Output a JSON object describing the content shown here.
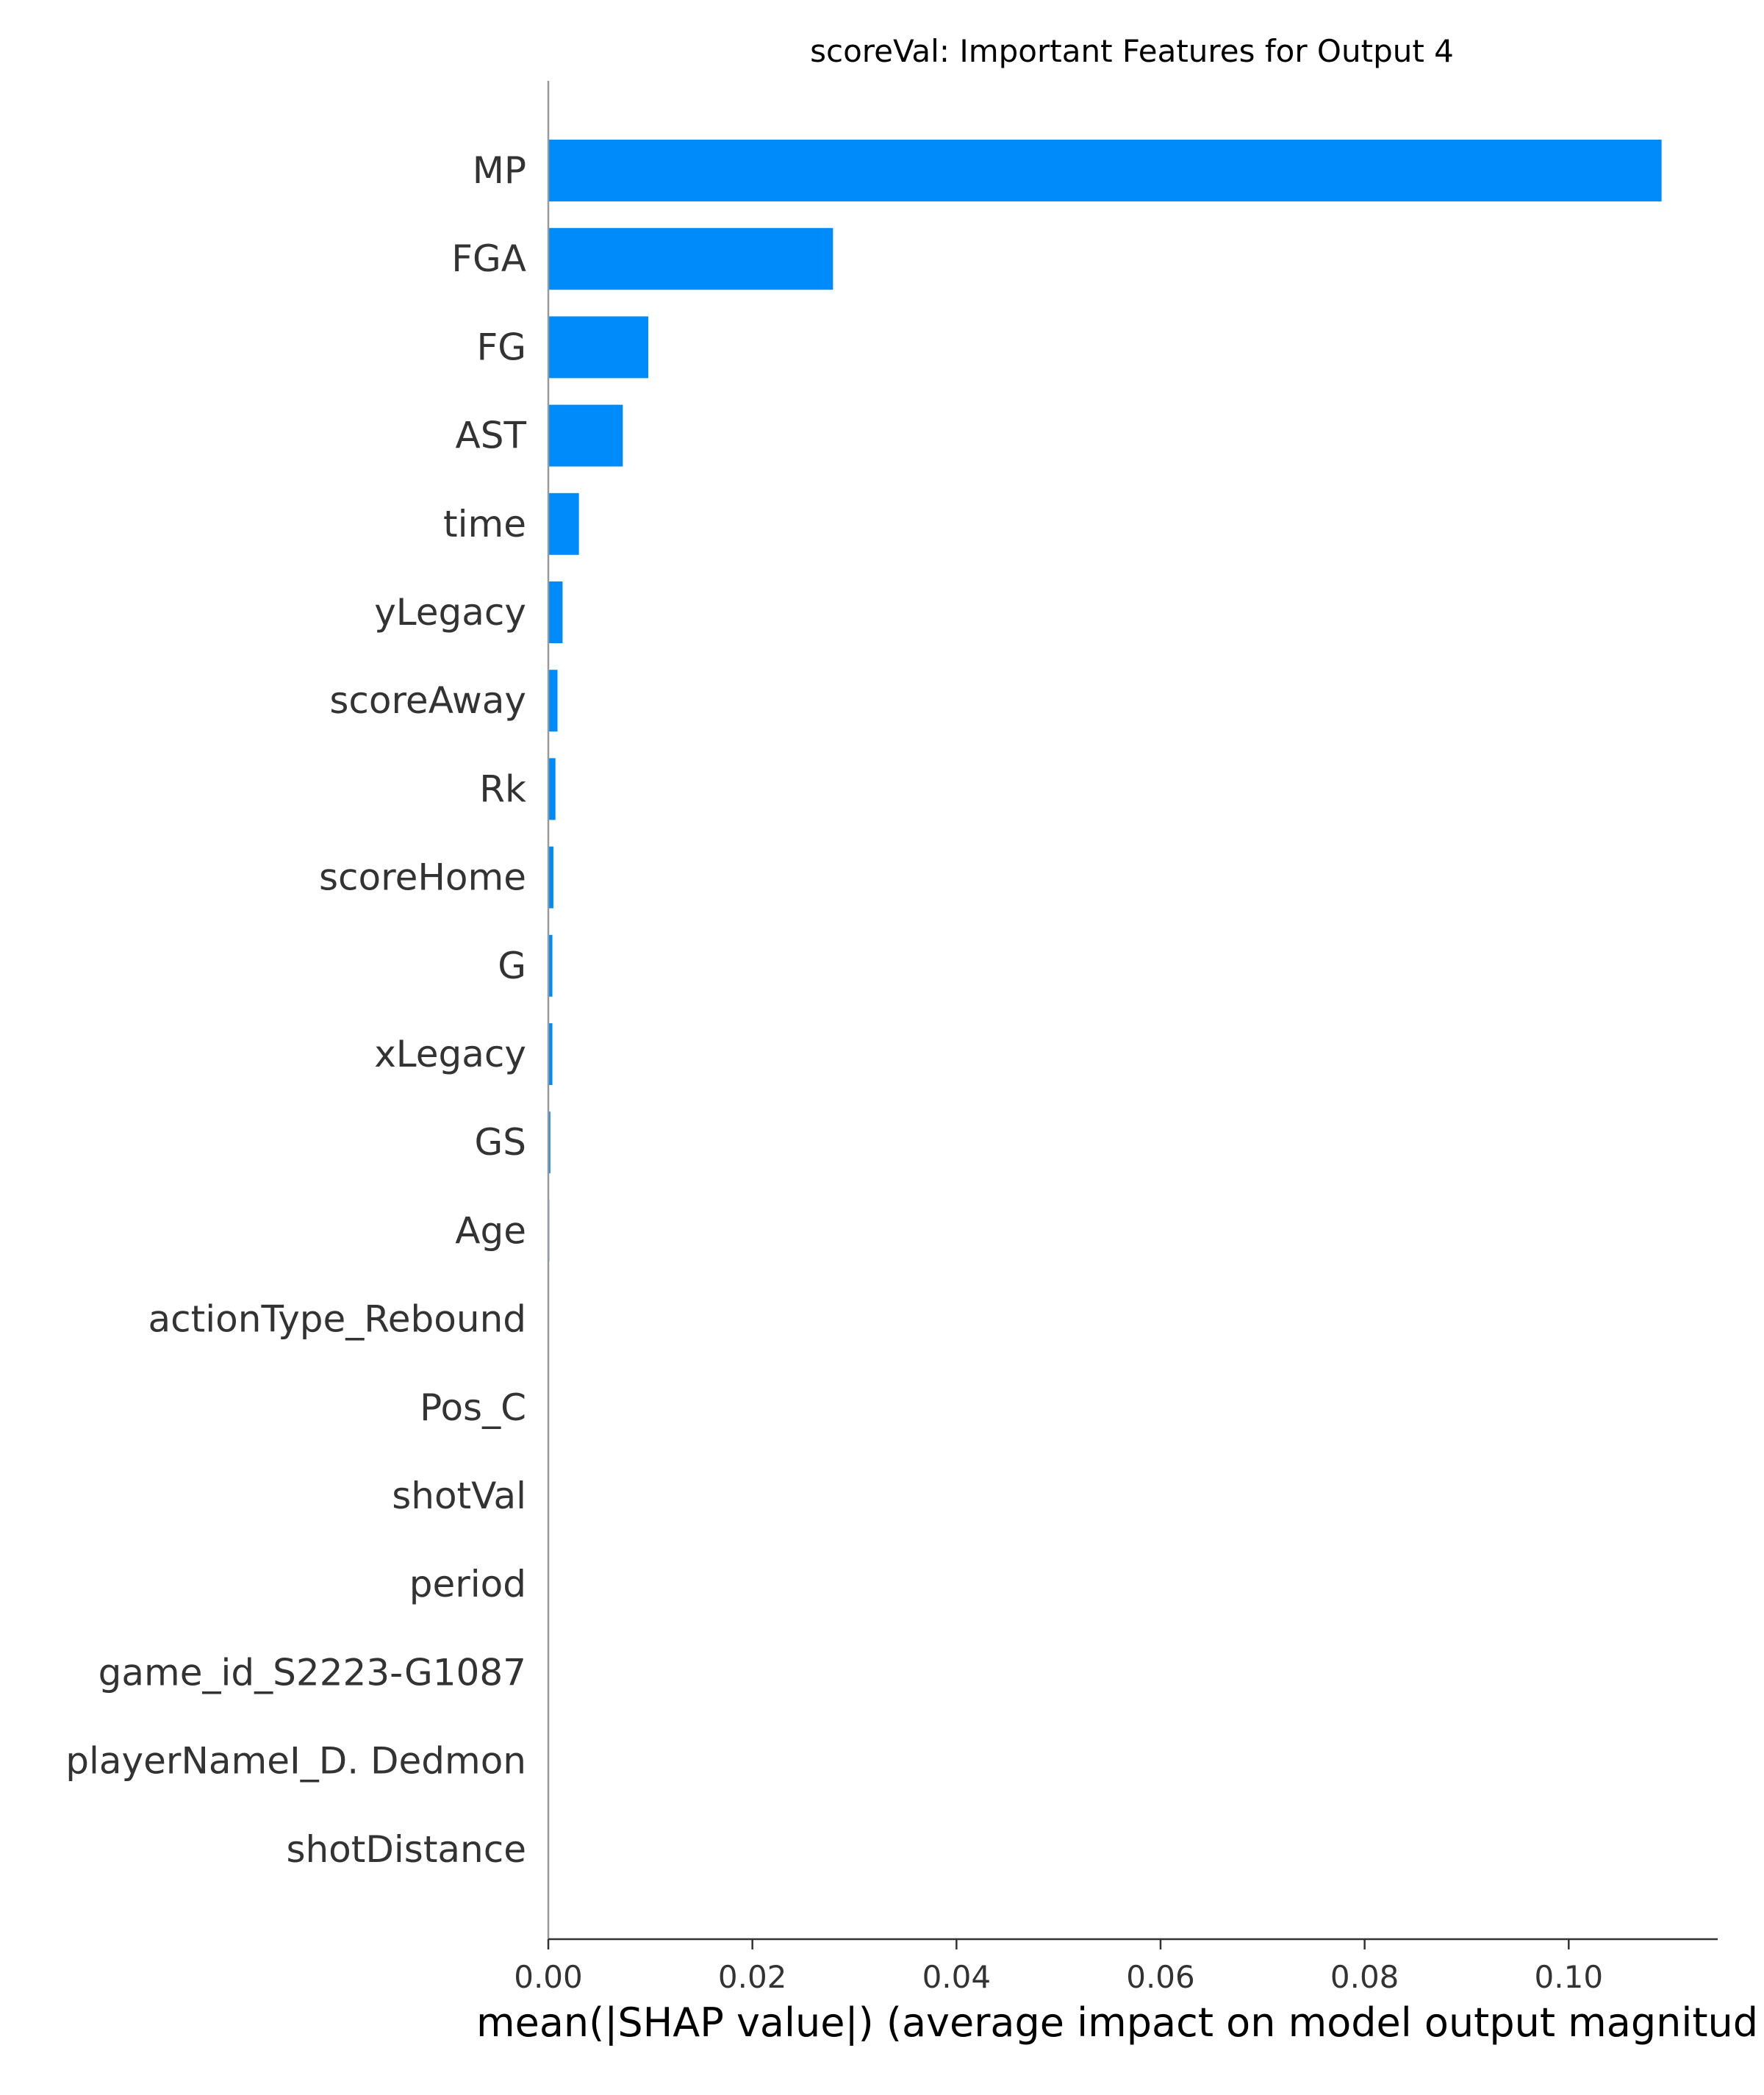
{
  "chart_data": {
    "type": "bar",
    "orientation": "horizontal",
    "title": "scoreVal: Important Features for Output 4",
    "xlabel": "mean(|SHAP value|) (average impact on model output magnitud",
    "ylabel": "",
    "categories": [
      "MP",
      "FGA",
      "FG",
      "AST",
      "time",
      "yLegacy",
      "scoreAway",
      "Rk",
      "scoreHome",
      "G",
      "xLegacy",
      "GS",
      "Age",
      "actionType_Rebound",
      "Pos_C",
      "shotVal",
      "period",
      "game_id_S2223-G1087",
      "playerNameI_D. Dedmon",
      "shotDistance"
    ],
    "values": [
      0.1091,
      0.0279,
      0.0098,
      0.0073,
      0.003,
      0.0014,
      0.0009,
      0.0007,
      0.0005,
      0.0004,
      0.0004,
      0.0002,
      0.0001,
      0.0,
      0.0,
      0.0,
      0.0,
      0.0,
      0.0,
      0.0
    ],
    "xlim": [
      0,
      0.1146
    ],
    "xticks": [
      "0.00",
      "0.02",
      "0.04",
      "0.06",
      "0.08",
      "0.10"
    ],
    "xtick_values": [
      0,
      0.02,
      0.04,
      0.06,
      0.08,
      0.1
    ],
    "bar_color": "#008bfb",
    "grid": false,
    "legend": "none"
  }
}
